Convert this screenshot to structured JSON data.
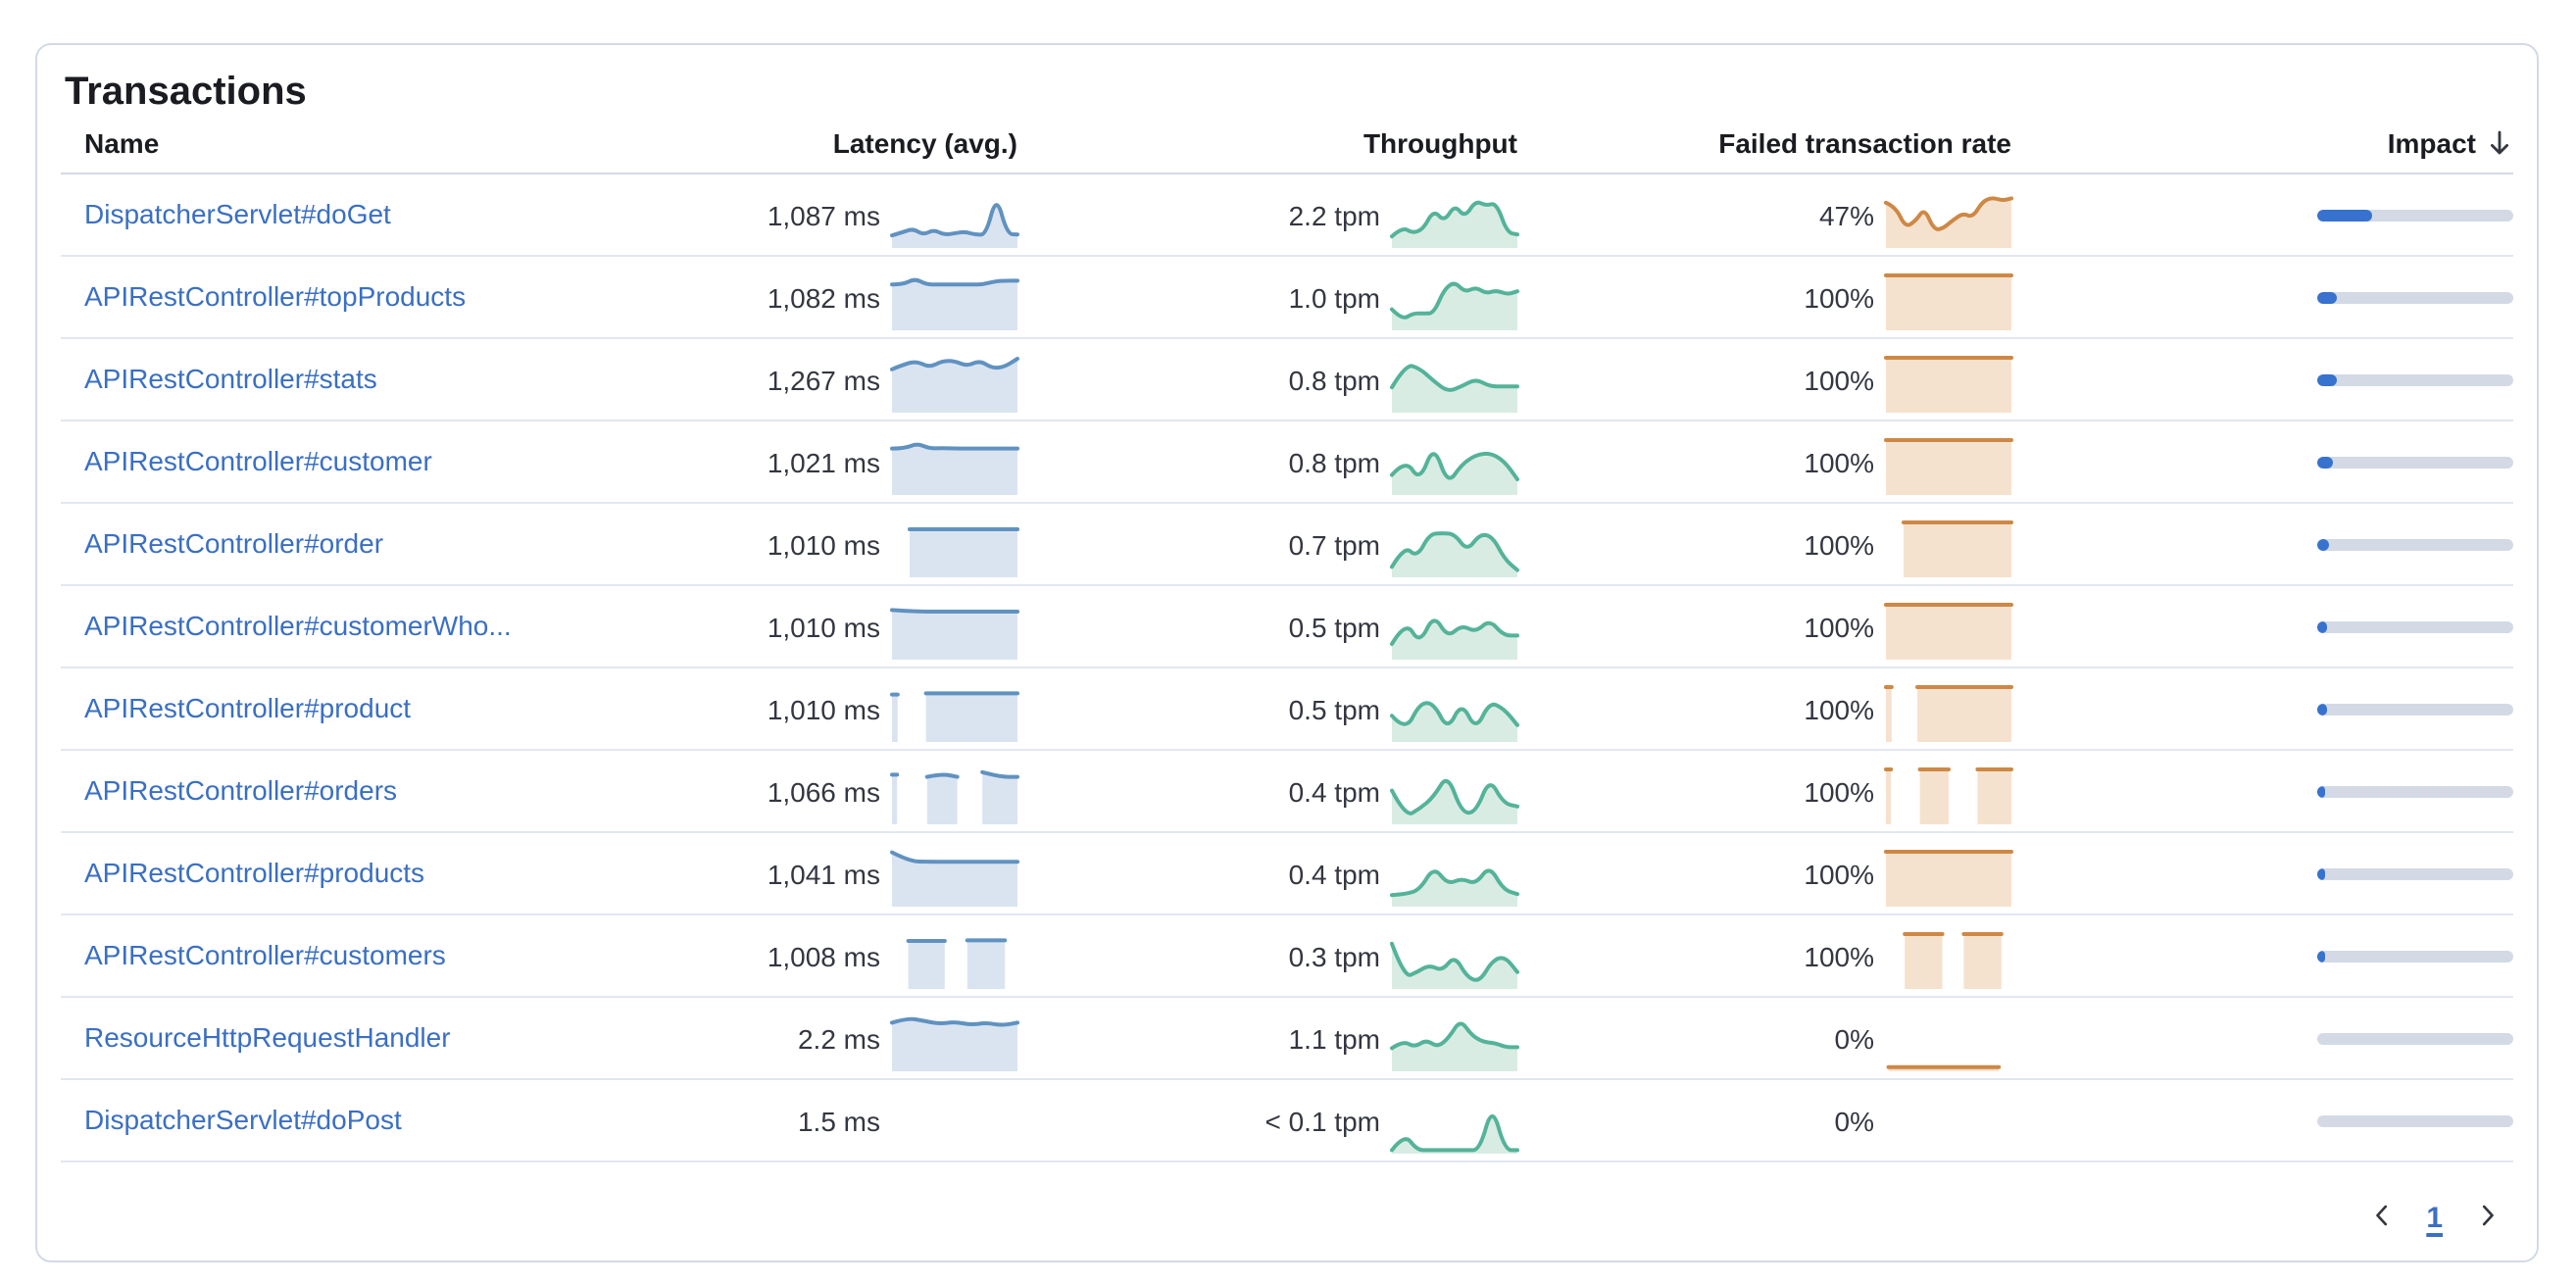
{
  "panel": {
    "title": "Transactions"
  },
  "table": {
    "columns": [
      {
        "id": "name",
        "label": "Name"
      },
      {
        "id": "latency",
        "label": "Latency (avg.)"
      },
      {
        "id": "throughput",
        "label": "Throughput"
      },
      {
        "id": "failed_rate",
        "label": "Failed transaction rate"
      },
      {
        "id": "impact",
        "label": "Impact",
        "sorted": "descending"
      }
    ],
    "rows": [
      {
        "name": "DispatcherServlet#doGet",
        "latency": "1,087 ms",
        "throughput": "2.2 tpm",
        "failed_rate": "47%",
        "impact_pct": 28,
        "latency_spark": {
          "palette": "blue",
          "segments": [
            {
              "x0": 0,
              "x1": 1,
              "v": [
                2,
                2.6,
                3.3,
                2.1,
                3.1,
                2.1,
                2.4,
                2.7,
                2.1,
                2.2,
                9.6,
                2.3,
                2.2
              ]
            }
          ]
        },
        "throughput_spark": {
          "palette": "green",
          "segments": [
            {
              "x0": 0,
              "x1": 1,
              "v": [
                1.8,
                3.6,
                2.4,
                3.2,
                6.8,
                4.6,
                7.8,
                5.4,
                8.6,
                7.6,
                8.2,
                2.6,
                2.2
              ]
            }
          ]
        },
        "failed_spark": {
          "palette": "orange",
          "segments": [
            {
              "x0": 0,
              "x1": 1,
              "v": [
                8.2,
                7.4,
                3.6,
                4.6,
                7.2,
                3,
                3.4,
                5,
                6.2,
                5.4,
                8.4,
                9.2,
                8.6,
                9
              ]
            }
          ]
        }
      },
      {
        "name": "APIRestController#topProducts",
        "latency": "1,082 ms",
        "throughput": "1.0 tpm",
        "failed_rate": "100%",
        "impact_pct": 10,
        "latency_spark": {
          "palette": "blue",
          "segments": [
            {
              "x0": 0,
              "x1": 1,
              "v": [
                8.3,
                8.3,
                9.4,
                8.3,
                8.3,
                8.3,
                8.3,
                8.3,
                8.3,
                8.9,
                9,
                9
              ]
            }
          ]
        },
        "throughput_spark": {
          "palette": "green",
          "segments": [
            {
              "x0": 0,
              "x1": 1,
              "v": [
                3.6,
                1.6,
                2.8,
                2.8,
                2.8,
                7.4,
                8.8,
                6.8,
                7.8,
                6.6,
                7.2,
                6.4,
                7
              ]
            }
          ]
        },
        "failed_spark": {
          "palette": "orange",
          "segments": [
            {
              "x0": 0,
              "x1": 1,
              "v": [
                10,
                10
              ]
            }
          ]
        }
      },
      {
        "name": "APIRestController#stats",
        "latency": "1,267 ms",
        "throughput": "0.8 tpm",
        "failed_rate": "100%",
        "impact_pct": 10,
        "latency_spark": {
          "palette": "blue",
          "segments": [
            {
              "x0": 0,
              "x1": 1,
              "v": [
                7.8,
                8.8,
                9.3,
                8.2,
                9.4,
                9.4,
                8.4,
                9.5,
                8,
                8.3,
                9.8
              ]
            }
          ]
        },
        "throughput_spark": {
          "palette": "green",
          "segments": [
            {
              "x0": 0,
              "x1": 1,
              "v": [
                4.4,
                8.8,
                8,
                5.6,
                3.6,
                4.6,
                6,
                4.6,
                4.6,
                4.6
              ]
            }
          ]
        },
        "failed_spark": {
          "palette": "orange",
          "segments": [
            {
              "x0": 0,
              "x1": 1,
              "v": [
                10,
                10
              ]
            }
          ]
        }
      },
      {
        "name": "APIRestController#customer",
        "latency": "1,021 ms",
        "throughput": "0.8 tpm",
        "failed_rate": "100%",
        "impact_pct": 8,
        "latency_spark": {
          "palette": "blue",
          "segments": [
            {
              "x0": 0,
              "x1": 1,
              "v": [
                8.4,
                8.4,
                9.4,
                8.4,
                8.5,
                8.4,
                8.4,
                8.4,
                8.4,
                8.4,
                8.4
              ]
            }
          ]
        },
        "throughput_spark": {
          "palette": "green",
          "segments": [
            {
              "x0": 0,
              "x1": 1,
              "v": [
                3.4,
                6.4,
                2.2,
                9.2,
                1.6,
                5.4,
                7.2,
                7.6,
                6.2,
                2.6
              ]
            }
          ]
        },
        "failed_spark": {
          "palette": "orange",
          "segments": [
            {
              "x0": 0,
              "x1": 1,
              "v": [
                10,
                10
              ]
            }
          ]
        }
      },
      {
        "name": "APIRestController#order",
        "latency": "1,010 ms",
        "throughput": "0.7 tpm",
        "failed_rate": "100%",
        "impact_pct": 6,
        "latency_spark": {
          "palette": "blue",
          "segments": [
            {
              "x0": 0.14,
              "x1": 1,
              "v": [
                8.7,
                8.7
              ]
            }
          ]
        },
        "throughput_spark": {
          "palette": "green",
          "segments": [
            {
              "x0": 0,
              "x1": 1,
              "v": [
                1.6,
                5.6,
                3.4,
                7.8,
                8,
                7.8,
                4.6,
                7.8,
                7.4,
                3,
                1
              ]
            }
          ]
        },
        "failed_spark": {
          "palette": "orange",
          "segments": [
            {
              "x0": 0.14,
              "x1": 1,
              "v": [
                10,
                10
              ]
            }
          ]
        }
      },
      {
        "name": "APIRestController#customerWho...",
        "latency": "1,010 ms",
        "throughput": "0.5 tpm",
        "failed_rate": "100%",
        "impact_pct": 5,
        "latency_spark": {
          "palette": "blue",
          "segments": [
            {
              "x0": 0,
              "x1": 1,
              "v": [
                9,
                8.7,
                8.7,
                8.7,
                8.7,
                8.7
              ]
            }
          ]
        },
        "throughput_spark": {
          "palette": "green",
          "segments": [
            {
              "x0": 0,
              "x1": 1,
              "v": [
                2.6,
                7,
                2.6,
                8.2,
                3.8,
                6.2,
                4.8,
                7.2,
                4.2,
                4.2
              ]
            }
          ]
        },
        "failed_spark": {
          "palette": "orange",
          "segments": [
            {
              "x0": 0,
              "x1": 1,
              "v": [
                10,
                10
              ]
            }
          ]
        }
      },
      {
        "name": "APIRestController#product",
        "latency": "1,010 ms",
        "throughput": "0.5 tpm",
        "failed_rate": "100%",
        "impact_pct": 5,
        "latency_spark": {
          "palette": "blue",
          "segments": [
            {
              "x0": 0,
              "x1": 0.045,
              "v": [
                8.6,
                8.6
              ]
            },
            {
              "x0": 0.27,
              "x1": 1,
              "v": [
                8.8,
                8.8
              ]
            }
          ]
        },
        "throughput_spark": {
          "palette": "green",
          "segments": [
            {
              "x0": 0,
              "x1": 1,
              "v": [
                4.6,
                1.6,
                7,
                7,
                1.8,
                7.2,
                1.8,
                7.2,
                6,
                2.8
              ]
            }
          ]
        },
        "failed_spark": {
          "palette": "orange",
          "segments": [
            {
              "x0": 0,
              "x1": 0.045,
              "v": [
                10,
                10
              ]
            },
            {
              "x0": 0.25,
              "x1": 1,
              "v": [
                10,
                10
              ]
            }
          ]
        }
      },
      {
        "name": "APIRestController#orders",
        "latency": "1,066 ms",
        "throughput": "0.4 tpm",
        "failed_rate": "100%",
        "impact_pct": 4,
        "latency_spark": {
          "palette": "blue",
          "segments": [
            {
              "x0": 0,
              "x1": 0.04,
              "v": [
                9,
                9
              ]
            },
            {
              "x0": 0.28,
              "x1": 0.52,
              "v": [
                8.6,
                9.2,
                8.6
              ]
            },
            {
              "x0": 0.72,
              "x1": 1,
              "v": [
                9.5,
                8.6,
                8.6
              ]
            }
          ]
        },
        "throughput_spark": {
          "palette": "green",
          "segments": [
            {
              "x0": 0,
              "x1": 1,
              "v": [
                6,
                1,
                2.6,
                4.8,
                9.2,
                1.8,
                1.8,
                8.4,
                3.6,
                3
              ]
            }
          ]
        },
        "failed_spark": {
          "palette": "orange",
          "segments": [
            {
              "x0": 0,
              "x1": 0.04,
              "v": [
                10,
                10
              ]
            },
            {
              "x0": 0.27,
              "x1": 0.5,
              "v": [
                10,
                10
              ]
            },
            {
              "x0": 0.73,
              "x1": 1,
              "v": [
                10,
                10
              ]
            }
          ]
        }
      },
      {
        "name": "APIRestController#products",
        "latency": "1,041 ms",
        "throughput": "0.4 tpm",
        "failed_rate": "100%",
        "impact_pct": 4,
        "latency_spark": {
          "palette": "blue",
          "segments": [
            {
              "x0": 0,
              "x1": 1,
              "v": [
                9.9,
                8.2,
                8.1,
                8.1,
                8.1,
                8.1,
                8.1,
                8.1
              ]
            }
          ]
        },
        "throughput_spark": {
          "palette": "green",
          "segments": [
            {
              "x0": 0,
              "x1": 1,
              "v": [
                1.8,
                2,
                2.8,
                7.2,
                3.8,
                5,
                3.8,
                7.4,
                2.8,
                2
              ]
            }
          ]
        },
        "failed_spark": {
          "palette": "orange",
          "segments": [
            {
              "x0": 0,
              "x1": 1,
              "v": [
                10,
                10
              ]
            }
          ]
        }
      },
      {
        "name": "APIRestController#customers",
        "latency": "1,008 ms",
        "throughput": "0.3 tpm",
        "failed_rate": "100%",
        "impact_pct": 3,
        "latency_spark": {
          "palette": "blue",
          "segments": [
            {
              "x0": 0.13,
              "x1": 0.42,
              "v": [
                8.7,
                8.7
              ]
            },
            {
              "x0": 0.6,
              "x1": 0.9,
              "v": [
                8.8,
                8.8
              ]
            }
          ]
        },
        "throughput_spark": {
          "palette": "green",
          "segments": [
            {
              "x0": 0,
              "x1": 1,
              "v": [
                8.2,
                1.8,
                2.8,
                4.2,
                3,
                6,
                1.8,
                1,
                5,
                5.8,
                2.8
              ]
            }
          ]
        },
        "failed_spark": {
          "palette": "orange",
          "segments": [
            {
              "x0": 0.15,
              "x1": 0.45,
              "v": [
                10,
                10
              ]
            },
            {
              "x0": 0.62,
              "x1": 0.92,
              "v": [
                10,
                10
              ]
            }
          ]
        }
      },
      {
        "name": "ResourceHttpRequestHandler",
        "latency": "2.2 ms",
        "throughput": "1.1 tpm",
        "failed_rate": "0%",
        "impact_pct": 0,
        "latency_spark": {
          "palette": "blue",
          "segments": [
            {
              "x0": 0,
              "x1": 1,
              "v": [
                8.8,
                9.7,
                9.2,
                8.6,
                9,
                8.4,
                8.8,
                8.3,
                8.8
              ]
            }
          ]
        },
        "throughput_spark": {
          "palette": "green",
          "segments": [
            {
              "x0": 0,
              "x1": 1,
              "v": [
                4,
                5.4,
                4.2,
                5.6,
                4.2,
                6,
                9.4,
                6.4,
                5.2,
                5,
                4.2,
                4.2
              ]
            }
          ]
        },
        "failed_spark": {
          "palette": "orange",
          "segments": [
            {
              "x0": 0.02,
              "x1": 0.9,
              "v": [
                0.4,
                0.4
              ]
            }
          ]
        }
      },
      {
        "name": "DispatcherServlet#doPost",
        "latency": "1.5 ms",
        "throughput": "< 0.1 tpm",
        "failed_rate": "0%",
        "impact_pct": 0,
        "latency_spark": null,
        "throughput_spark": {
          "palette": "green",
          "segments": [
            {
              "x0": 0,
              "x1": 1,
              "v": [
                0.3,
                3.4,
                0.3,
                0.3,
                0.3,
                0.3,
                0.3,
                0.3,
                8.8,
                0.3,
                0.3
              ]
            }
          ]
        },
        "failed_spark": null
      }
    ]
  },
  "pagination": {
    "current_page": "1",
    "prev": "previous-page",
    "next": "next-page"
  },
  "colors": {
    "impact_fill": "#3772ce",
    "impact_track": "#d3dae6",
    "link_blue": "#3a6fc3",
    "palettes": {
      "blue": {
        "line": "#6092c0",
        "fill": "#dae4f1"
      },
      "green": {
        "line": "#54b399",
        "fill": "#d9ece3"
      },
      "orange": {
        "line": "#ce8845",
        "fill": "#f5e2ce"
      }
    }
  }
}
